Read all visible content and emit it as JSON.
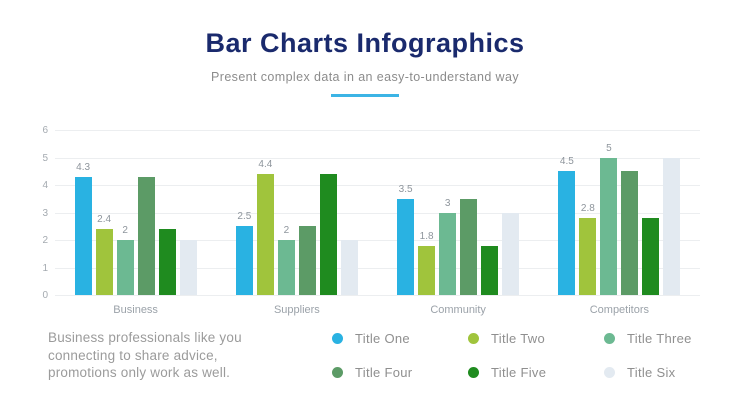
{
  "header": {
    "title": "Bar Charts Infographics",
    "subtitle": "Present complex data in an easy-to-understand way",
    "title_color": "#1A2A6D",
    "accent_color": "#3CB4E5"
  },
  "footer": {
    "lines": [
      "Business professionals like you",
      "connecting to share advice,",
      "promotions only work as well."
    ]
  },
  "chart_data": {
    "type": "bar",
    "categories": [
      "Business",
      "Suppliers",
      "Community",
      "Competitors"
    ],
    "series": [
      {
        "name": "Title One",
        "color": "#29B2E2",
        "values": [
          4.3,
          2.5,
          3.5,
          4.5
        ],
        "labeled": true
      },
      {
        "name": "Title Two",
        "color": "#A0C43C",
        "values": [
          2.4,
          4.4,
          1.8,
          2.8
        ],
        "labeled": true
      },
      {
        "name": "Title Three",
        "color": "#6CB992",
        "values": [
          2,
          2,
          3,
          5
        ],
        "labeled": true
      },
      {
        "name": "Title Four",
        "color": "#5C9B66",
        "values": [
          4.3,
          2.5,
          3.5,
          4.5
        ],
        "labeled": false
      },
      {
        "name": "Title Five",
        "color": "#1F8B1F",
        "values": [
          2.4,
          4.4,
          1.8,
          2.8
        ],
        "labeled": false
      },
      {
        "name": "Title Six",
        "color": "#E3EAF1",
        "values": [
          2,
          2,
          3,
          5
        ],
        "labeled": false
      }
    ],
    "ylim": [
      0,
      6
    ],
    "yticks": [
      0,
      1,
      2,
      3,
      4,
      5,
      6
    ],
    "grid": true,
    "grid_color": "#ECEEF0",
    "label_color": "#8E959C",
    "legend_position": "bottom-right"
  }
}
